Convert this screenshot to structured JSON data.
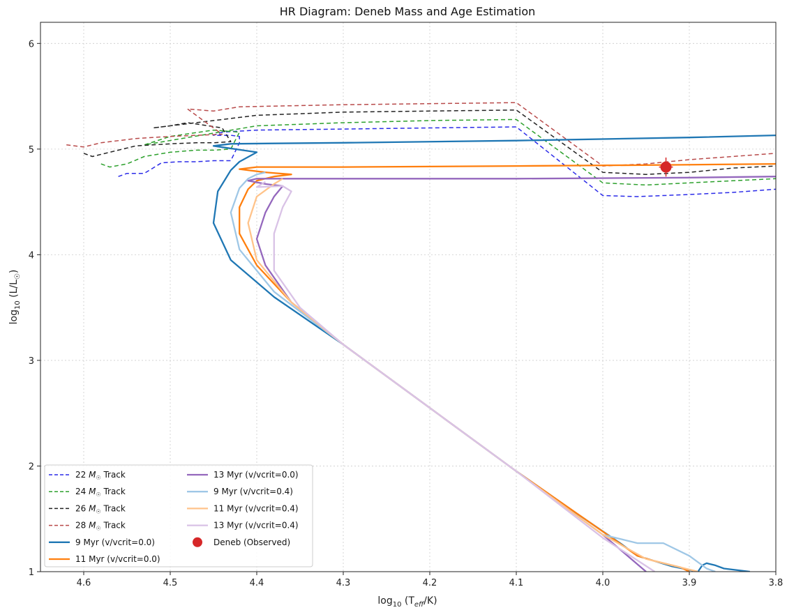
{
  "chart_data": {
    "type": "line",
    "title": "HR Diagram: Deneb Mass and Age Estimation",
    "xlabel_parts": {
      "pre": "log",
      "sub": "10",
      "mid": " (T",
      "sub2": "eff",
      "post": "/K)"
    },
    "ylabel_parts": {
      "pre": "log",
      "sub": "10",
      "mid": " (L/L",
      "sub2": "☉",
      "post": ")"
    },
    "xlim": [
      4.65,
      3.8
    ],
    "ylim": [
      1.0,
      6.2
    ],
    "x_ticks": [
      4.6,
      4.5,
      4.4,
      4.3,
      4.2,
      4.1,
      4.0,
      3.9,
      3.8
    ],
    "x_tick_labels": [
      "4.6",
      "4.5",
      "4.4",
      "4.3",
      "4.2",
      "4.1",
      "4.0",
      "3.9",
      "3.8"
    ],
    "y_ticks": [
      1,
      2,
      3,
      4,
      5,
      6
    ],
    "y_tick_labels": [
      "1",
      "2",
      "3",
      "4",
      "5",
      "6"
    ],
    "grid": true,
    "legend_placement": "lower-left",
    "series": [
      {
        "name_pre": "22 ",
        "name_M": "M",
        "name_sub": "☉",
        "name_post": " Track",
        "color": "#2a2ae8",
        "style": "dashed",
        "x": [
          4.56,
          4.55,
          4.53,
          4.52,
          4.51,
          4.49,
          4.47,
          4.45,
          4.44,
          4.43,
          4.42,
          4.42,
          4.43,
          4.45,
          4.44,
          4.4,
          4.3,
          4.2,
          4.1,
          4.0,
          3.96,
          3.9,
          3.85,
          3.8
        ],
        "y": [
          4.74,
          4.77,
          4.77,
          4.82,
          4.87,
          4.88,
          4.88,
          4.89,
          4.89,
          4.89,
          5.06,
          5.12,
          5.13,
          5.13,
          5.16,
          5.18,
          5.19,
          5.2,
          5.21,
          4.56,
          4.55,
          4.57,
          4.59,
          4.62
        ]
      },
      {
        "name_pre": "24 ",
        "name_M": "M",
        "name_sub": "☉",
        "name_post": " Track",
        "color": "#2ca02c",
        "style": "dashed",
        "x": [
          4.58,
          4.57,
          4.55,
          4.53,
          4.5,
          4.47,
          4.45,
          4.43,
          4.42,
          4.45,
          4.5,
          4.53,
          4.4,
          4.3,
          4.2,
          4.1,
          4.0,
          3.95,
          3.9,
          3.85,
          3.8
        ],
        "y": [
          4.86,
          4.83,
          4.86,
          4.93,
          4.97,
          4.99,
          4.99,
          5.0,
          5.16,
          5.18,
          5.12,
          5.04,
          5.22,
          5.25,
          5.27,
          5.28,
          4.68,
          4.66,
          4.68,
          4.7,
          4.72
        ]
      },
      {
        "name_pre": "26 ",
        "name_M": "M",
        "name_sub": "☉",
        "name_post": " Track",
        "color": "#222222",
        "style": "dashed",
        "x": [
          4.6,
          4.59,
          4.57,
          4.54,
          4.5,
          4.47,
          4.45,
          4.43,
          4.44,
          4.48,
          4.5,
          4.52,
          4.4,
          4.3,
          4.2,
          4.1,
          4.0,
          3.95,
          3.9,
          3.85,
          3.8
        ],
        "y": [
          4.96,
          4.93,
          4.97,
          5.03,
          5.05,
          5.06,
          5.06,
          5.07,
          5.2,
          5.25,
          5.22,
          5.2,
          5.32,
          5.35,
          5.36,
          5.37,
          4.78,
          4.76,
          4.78,
          4.82,
          4.84
        ]
      },
      {
        "name_pre": "28 ",
        "name_M": "M",
        "name_sub": "☉",
        "name_post": " Track",
        "color": "#b84a4a",
        "style": "dashed",
        "x": [
          4.62,
          4.6,
          4.58,
          4.54,
          4.5,
          4.47,
          4.44,
          4.47,
          4.48,
          4.45,
          4.42,
          4.3,
          4.2,
          4.1,
          4.0,
          3.95,
          3.9,
          3.85,
          3.8
        ],
        "y": [
          5.04,
          5.02,
          5.06,
          5.1,
          5.12,
          5.13,
          5.14,
          5.32,
          5.38,
          5.36,
          5.4,
          5.42,
          5.43,
          5.44,
          4.84,
          4.86,
          4.9,
          4.93,
          4.96
        ]
      },
      {
        "name_pre": "9 Myr (v/vcrit=0.0)",
        "name_M": "",
        "name_sub": "",
        "name_post": "",
        "color": "#1f77b4",
        "style": "solid",
        "x": [
          3.83,
          3.86,
          3.87,
          3.88,
          3.885,
          3.89,
          3.92,
          3.96,
          3.98,
          4.03,
          4.1,
          4.2,
          4.3,
          4.38,
          4.43,
          4.45,
          4.445,
          4.43,
          4.42,
          4.4,
          4.45,
          4.43,
          4.3,
          4.1,
          3.9,
          3.8
        ],
        "y": [
          1.0,
          1.03,
          1.06,
          1.08,
          1.06,
          1.0,
          1.05,
          1.15,
          1.27,
          1.55,
          1.95,
          2.55,
          3.15,
          3.6,
          3.95,
          4.3,
          4.6,
          4.8,
          4.88,
          4.97,
          5.03,
          5.05,
          5.06,
          5.08,
          5.11,
          5.13
        ]
      },
      {
        "name_pre": "11 Myr (v/vcrit=0.0)",
        "name_M": "",
        "name_sub": "",
        "name_post": "",
        "color": "#ff7f0e",
        "style": "solid",
        "x": [
          3.9,
          3.91,
          3.94,
          3.96,
          4.0,
          4.1,
          4.2,
          4.3,
          4.36,
          4.4,
          4.42,
          4.42,
          4.41,
          4.4,
          4.38,
          4.36,
          4.39,
          4.42,
          4.4,
          4.3,
          4.1,
          3.93,
          3.8
        ],
        "y": [
          1.0,
          1.04,
          1.1,
          1.15,
          1.38,
          1.95,
          2.55,
          3.15,
          3.55,
          3.9,
          4.2,
          4.45,
          4.62,
          4.7,
          4.74,
          4.76,
          4.78,
          4.81,
          4.83,
          4.83,
          4.84,
          4.85,
          4.86
        ]
      },
      {
        "name_pre": "13 Myr (v/vcrit=0.0)",
        "name_M": "",
        "name_sub": "",
        "name_post": "",
        "color": "#9467bd",
        "style": "solid",
        "x": [
          3.95,
          4.0,
          4.1,
          4.2,
          4.3,
          4.36,
          4.39,
          4.4,
          4.39,
          4.38,
          4.37,
          4.39,
          4.41,
          4.4,
          4.3,
          4.1,
          3.9,
          3.8
        ],
        "y": [
          1.0,
          1.35,
          1.95,
          2.55,
          3.15,
          3.55,
          3.9,
          4.15,
          4.4,
          4.55,
          4.65,
          4.67,
          4.7,
          4.72,
          4.72,
          4.72,
          4.73,
          4.74
        ]
      },
      {
        "name_pre": "9 Myr (v/vcrit=0.4)",
        "name_M": "",
        "name_sub": "",
        "name_post": "",
        "color": "#9fc7e6",
        "style": "solid",
        "x": [
          3.87,
          3.88,
          3.9,
          3.93,
          3.96,
          4.0,
          4.1,
          4.2,
          4.3,
          4.38,
          4.42,
          4.43,
          4.42,
          4.41,
          4.4,
          4.39
        ],
        "y": [
          1.0,
          1.03,
          1.15,
          1.27,
          1.27,
          1.35,
          1.95,
          2.55,
          3.15,
          3.65,
          4.05,
          4.4,
          4.63,
          4.72,
          4.76,
          4.78
        ]
      },
      {
        "name_pre": "11 Myr (v/vcrit=0.4)",
        "name_M": "",
        "name_sub": "",
        "name_post": "",
        "color": "#ffc38a",
        "style": "solid",
        "x": [
          3.89,
          3.92,
          3.95,
          4.0,
          4.1,
          4.2,
          4.3,
          4.36,
          4.4,
          4.41,
          4.4,
          4.38,
          4.37
        ],
        "y": [
          1.0,
          1.06,
          1.12,
          1.35,
          1.95,
          2.55,
          3.15,
          3.55,
          3.95,
          4.3,
          4.55,
          4.67,
          4.72
        ]
      },
      {
        "name_pre": "13 Myr (v/vcrit=0.4)",
        "name_M": "",
        "name_sub": "",
        "name_post": "",
        "color": "#d9c2e6",
        "style": "solid",
        "x": [
          3.94,
          4.0,
          4.1,
          4.2,
          4.3,
          4.35,
          4.38,
          4.38,
          4.37,
          4.36,
          4.37,
          4.4,
          4.39
        ],
        "y": [
          1.0,
          1.32,
          1.95,
          2.55,
          3.15,
          3.5,
          3.85,
          4.2,
          4.45,
          4.6,
          4.65,
          4.64,
          4.69
        ]
      }
    ],
    "observed": {
      "name": "Deneb (Observed)",
      "color": "#d62728",
      "x": 3.927,
      "y": 4.83,
      "x_err": 0.008,
      "y_err": 0.09
    }
  }
}
